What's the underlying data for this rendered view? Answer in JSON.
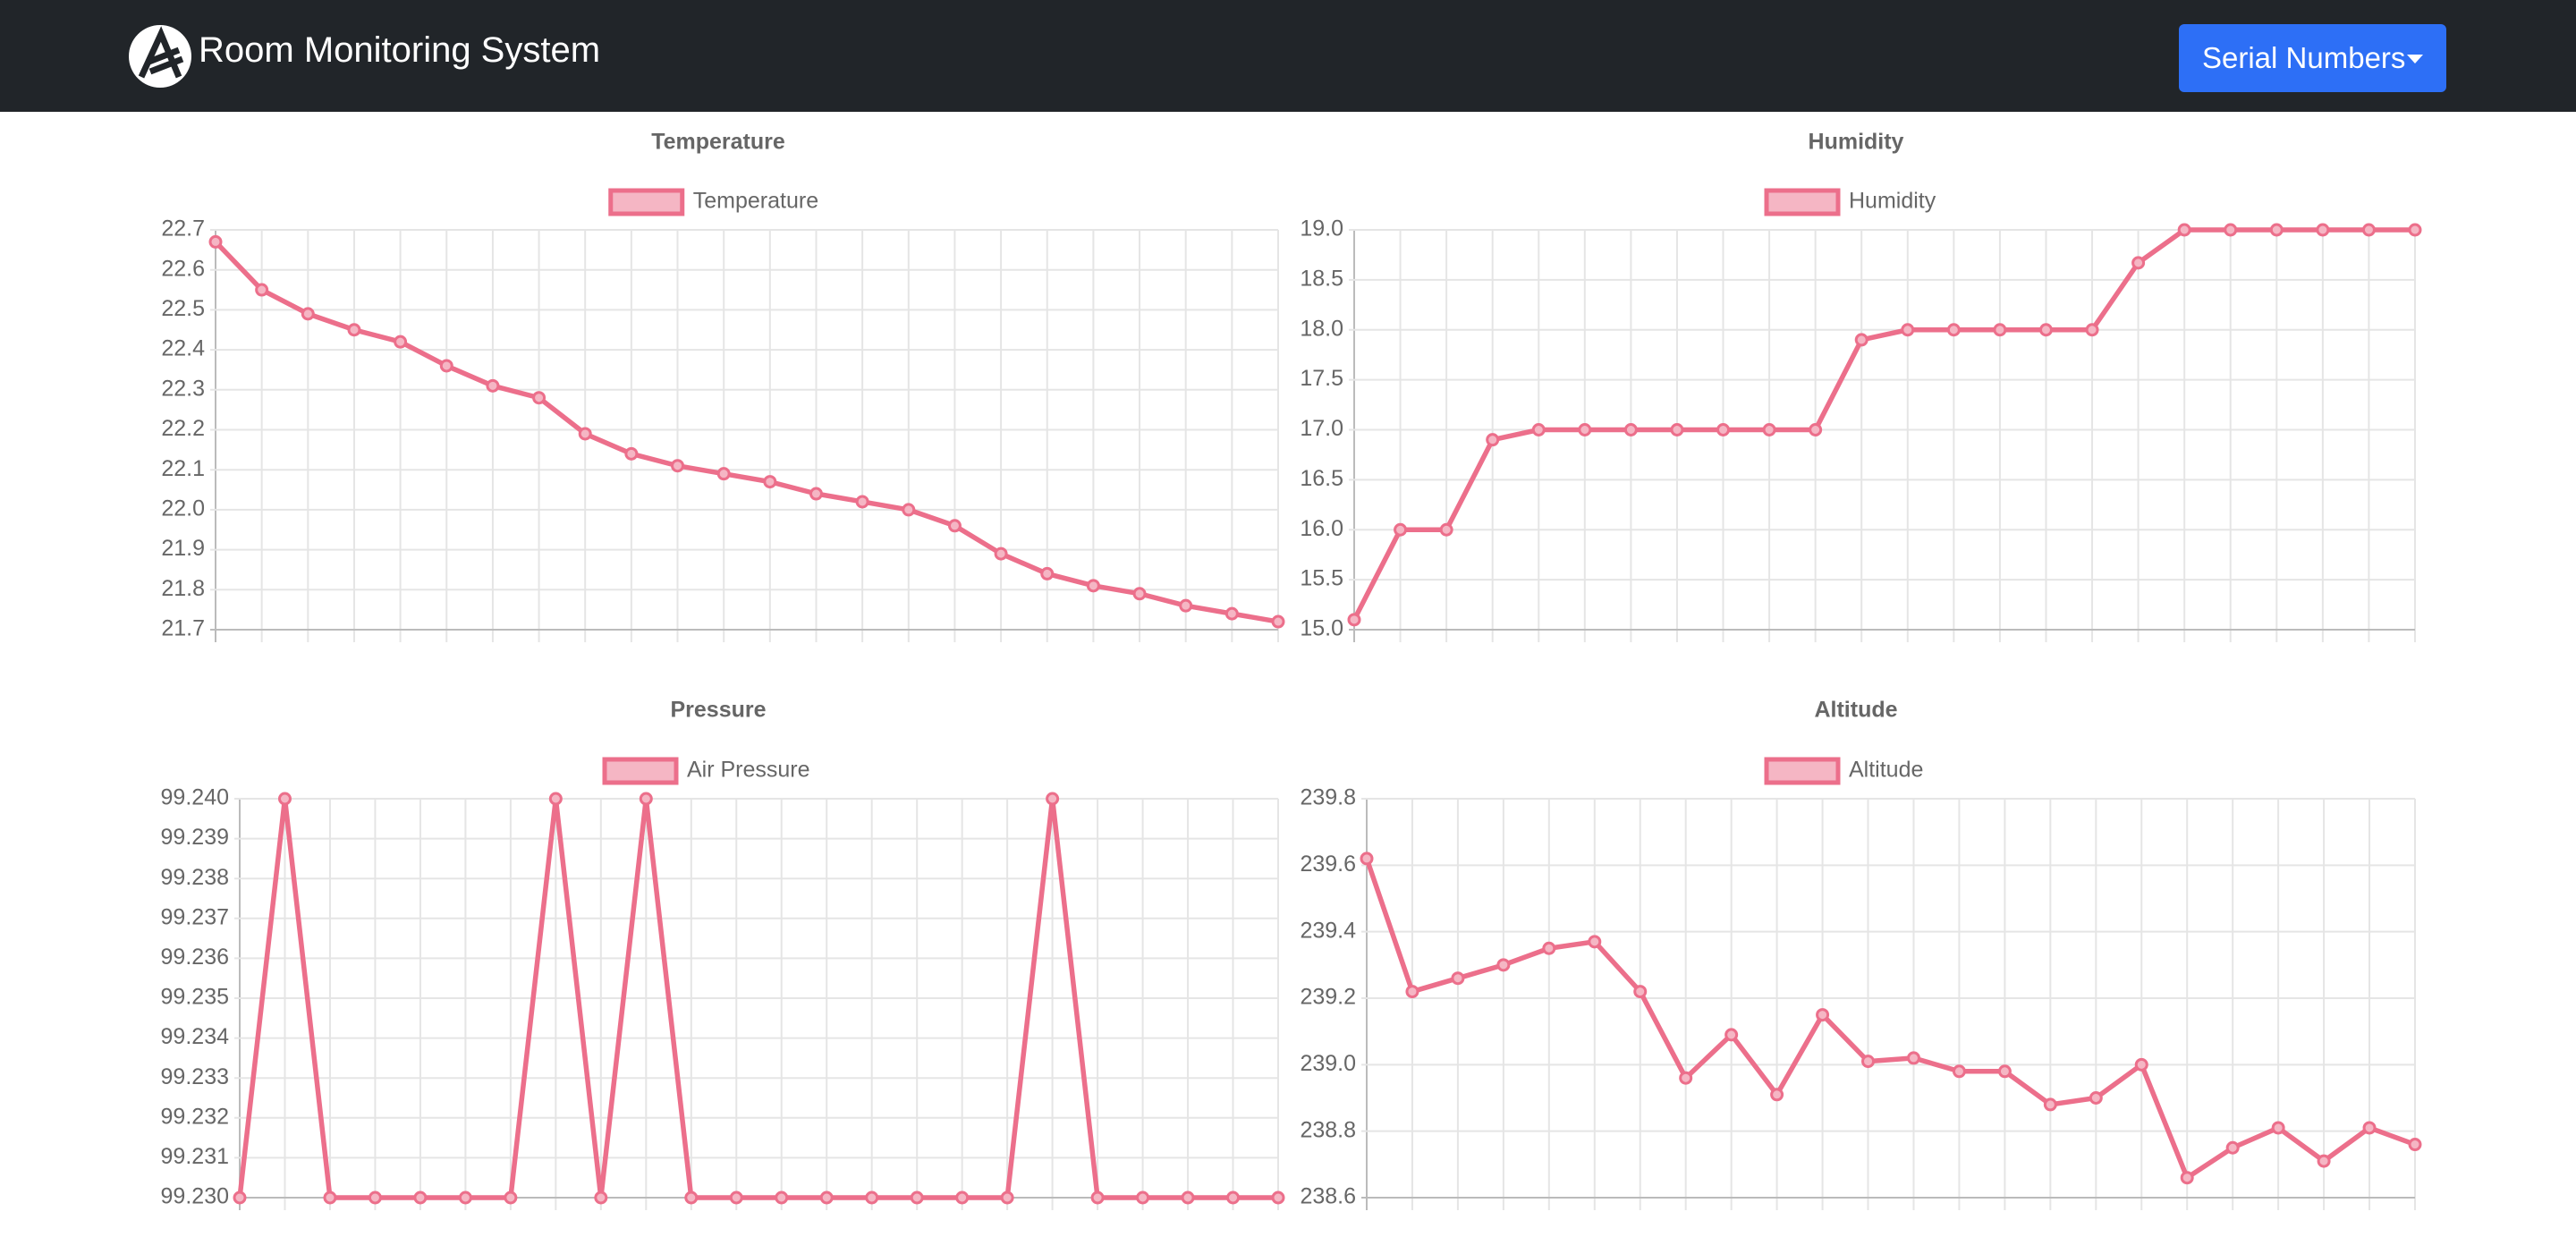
{
  "navbar": {
    "title": "Room Monitoring System",
    "button": "Serial Numbers"
  },
  "chart_data": [
    {
      "type": "line",
      "title": "Temperature",
      "legend": "top",
      "grid": true,
      "categories": [
        null,
        null,
        null,
        null,
        null,
        null,
        null,
        null,
        null,
        null,
        null,
        null,
        null,
        null,
        null,
        null,
        null,
        null,
        null,
        null,
        null,
        null,
        null,
        null
      ],
      "series": [
        {
          "name": "Temperature",
          "color": "#ec6f8b",
          "values": [
            22.67,
            22.55,
            22.49,
            22.45,
            22.42,
            22.36,
            22.31,
            22.28,
            22.19,
            22.14,
            22.11,
            22.09,
            22.07,
            22.04,
            22.02,
            22.0,
            21.96,
            21.89,
            21.84,
            21.81,
            21.79,
            21.76,
            21.74,
            21.72
          ]
        }
      ],
      "ylim": [
        21.7,
        22.7
      ],
      "yticks": [
        21.7,
        21.8,
        21.9,
        {
          "value": 22,
          "label": "22.0"
        },
        22.1,
        22.2,
        22.3,
        22.4,
        22.5,
        22.6,
        22.7
      ]
    },
    {
      "type": "line",
      "title": "Humidity",
      "legend": "top",
      "grid": true,
      "categories": [
        null,
        null,
        null,
        null,
        null,
        null,
        null,
        null,
        null,
        null,
        null,
        null,
        null,
        null,
        null,
        null,
        null,
        null,
        null,
        null,
        null,
        null,
        null,
        null
      ],
      "series": [
        {
          "name": "Humidity",
          "color": "#ec6f8b",
          "values": [
            15.1,
            16.0,
            16.0,
            16.9,
            17.0,
            17.0,
            17.0,
            17.0,
            17.0,
            17.0,
            17.0,
            17.9,
            18.0,
            18.0,
            18.0,
            18.0,
            18.0,
            18.67,
            19.0,
            19.0,
            19.0,
            19.0,
            19.0,
            19.0
          ]
        }
      ],
      "ylim": [
        15,
        19
      ],
      "yticks": [
        {
          "value": 15,
          "label": "15.0"
        },
        15.5,
        {
          "value": 16,
          "label": "16.0"
        },
        16.5,
        {
          "value": 17,
          "label": "17.0"
        },
        17.5,
        {
          "value": 18,
          "label": "18.0"
        },
        18.5,
        {
          "value": 19,
          "label": "19.0"
        }
      ]
    },
    {
      "type": "line",
      "title": "Pressure",
      "legend": "top",
      "grid": true,
      "categories": [
        null,
        null,
        null,
        null,
        null,
        null,
        null,
        null,
        null,
        null,
        null,
        null,
        null,
        null,
        null,
        null,
        null,
        null,
        null,
        null,
        null,
        null,
        null,
        null
      ],
      "series": [
        {
          "name": "Air Pressure",
          "color": "#ec6f8b",
          "values": [
            99.23,
            99.24,
            99.23,
            99.23,
            99.23,
            99.23,
            99.23,
            99.24,
            99.23,
            99.24,
            99.23,
            99.23,
            99.23,
            99.23,
            99.23,
            99.23,
            99.23,
            99.23,
            99.24,
            99.23,
            99.23,
            99.23,
            99.23,
            99.23
          ]
        }
      ],
      "ylim": [
        99.23,
        99.24
      ],
      "yticks": [
        {
          "value": 99.23,
          "label": "99.230"
        },
        99.231,
        99.232,
        99.233,
        99.234,
        99.235,
        99.236,
        99.237,
        99.238,
        99.239,
        {
          "value": 99.24,
          "label": "99.240"
        }
      ]
    },
    {
      "type": "line",
      "title": "Altitude",
      "legend": "top",
      "grid": true,
      "categories": [
        null,
        null,
        null,
        null,
        null,
        null,
        null,
        null,
        null,
        null,
        null,
        null,
        null,
        null,
        null,
        null,
        null,
        null,
        null,
        null,
        null,
        null,
        null,
        null
      ],
      "series": [
        {
          "name": "Altitude",
          "color": "#ec6f8b",
          "values": [
            239.62,
            239.22,
            239.26,
            239.3,
            239.35,
            239.37,
            239.22,
            238.96,
            239.09,
            238.91,
            239.15,
            239.01,
            239.02,
            238.98,
            238.98,
            238.88,
            238.9,
            239.0,
            238.66,
            238.75,
            238.81,
            238.71,
            238.81,
            238.76
          ]
        }
      ],
      "ylim": [
        238.6,
        239.8
      ],
      "yticks": [
        238.6,
        238.8,
        {
          "value": 239,
          "label": "239.0"
        },
        239.2,
        239.4,
        239.6,
        239.8
      ]
    }
  ]
}
